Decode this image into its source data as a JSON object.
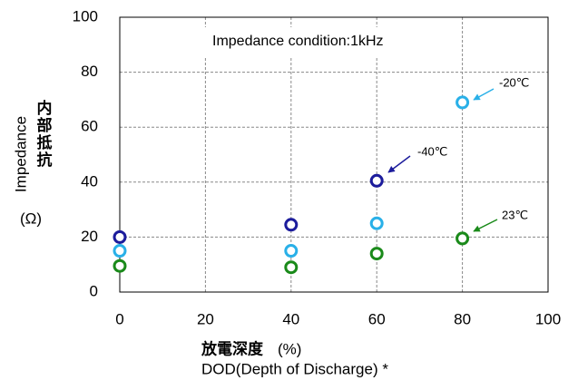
{
  "chart_data": {
    "type": "scatter",
    "annotation": "Impedance condition:1kHz",
    "y_label": "Impedance",
    "y_label_jp": "内部抵抗",
    "y_unit": "(Ω)",
    "x_label_jp": "放電深度",
    "x_unit": "(%)",
    "x_label": "DOD(Depth of Discharge) *",
    "xlim": [
      0,
      100
    ],
    "xticks": [
      0,
      20,
      40,
      60,
      80,
      100
    ],
    "ylim": [
      0,
      100
    ],
    "yticks": [
      0,
      20,
      40,
      60,
      80,
      100
    ],
    "grid": true,
    "series": [
      {
        "name": "-40℃",
        "color": "#1c1c9c",
        "x": [
          0,
          40,
          60
        ],
        "values": [
          20,
          24.5,
          40.5
        ]
      },
      {
        "name": "-20℃",
        "color": "#29b0e8",
        "x": [
          0,
          40,
          60,
          80
        ],
        "values": [
          15,
          15,
          25,
          69
        ]
      },
      {
        "name": "23℃",
        "color": "#1a8a1a",
        "x": [
          0,
          40,
          60,
          80
        ],
        "values": [
          9.5,
          9,
          14,
          19.5
        ]
      }
    ]
  }
}
